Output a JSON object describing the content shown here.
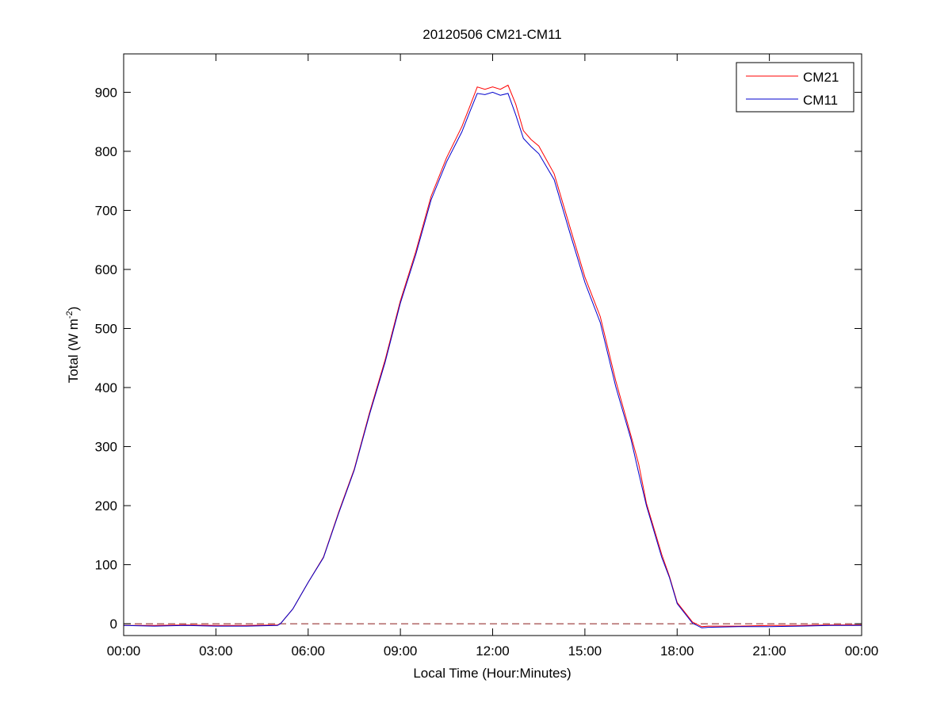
{
  "chart_data": {
    "type": "line",
    "title": "20120506 CM21-CM11",
    "xlabel": "Local Time (Hour:Minutes)",
    "ylabel": "Total (W m",
    "ylabel_sup": "-2",
    "ylabel_end": ")",
    "xlim": [
      0,
      24
    ],
    "ylim": [
      -20,
      965
    ],
    "xticks": [
      0,
      3,
      6,
      9,
      12,
      15,
      18,
      21,
      24
    ],
    "xtick_labels": [
      "00:00",
      "03:00",
      "06:00",
      "09:00",
      "12:00",
      "15:00",
      "18:00",
      "21:00",
      "00:00"
    ],
    "yticks": [
      0,
      100,
      200,
      300,
      400,
      500,
      600,
      700,
      800,
      900
    ],
    "ytick_labels": [
      "0",
      "100",
      "200",
      "300",
      "400",
      "500",
      "600",
      "700",
      "800",
      "900"
    ],
    "grid": false,
    "legend": "top-right",
    "reference_line": {
      "y": 0,
      "style": "dashed",
      "color": "#8b1a1a"
    },
    "x": [
      0,
      1,
      2,
      3,
      4,
      5,
      5.1,
      5.5,
      6,
      6.5,
      7,
      7.5,
      8,
      8.5,
      9,
      9.5,
      10,
      10.5,
      11,
      11.25,
      11.5,
      11.75,
      12,
      12.25,
      12.5,
      12.75,
      13,
      13.25,
      13.5,
      14,
      14.5,
      15,
      15.5,
      16,
      16.5,
      16.75,
      17,
      17.5,
      17.75,
      18,
      18.5,
      18.8,
      19,
      20,
      21,
      22,
      23,
      24
    ],
    "series": [
      {
        "name": "CM21",
        "color": "#ff0000",
        "values": [
          -3,
          -3,
          -2,
          -3,
          -3,
          -2,
          0,
          25,
          70,
          113,
          190,
          262,
          358,
          446,
          547,
          630,
          724,
          789,
          842,
          875,
          909,
          905,
          909,
          905,
          912,
          880,
          835,
          820,
          809,
          762,
          674,
          587,
          520,
          412,
          318,
          270,
          204,
          117,
          80,
          36,
          3,
          -5,
          -4,
          -4,
          -3,
          -3,
          -2,
          -2
        ]
      },
      {
        "name": "CM11",
        "color": "#0000cc",
        "values": [
          -3,
          -4,
          -3,
          -4,
          -4,
          -3,
          0,
          25,
          70,
          112,
          188,
          260,
          355,
          442,
          543,
          625,
          718,
          782,
          833,
          866,
          898,
          896,
          900,
          895,
          898,
          862,
          822,
          808,
          796,
          752,
          664,
          578,
          510,
          402,
          312,
          255,
          200,
          112,
          78,
          34,
          1,
          -7,
          -6,
          -5,
          -5,
          -4,
          -3,
          -3
        ]
      }
    ]
  }
}
